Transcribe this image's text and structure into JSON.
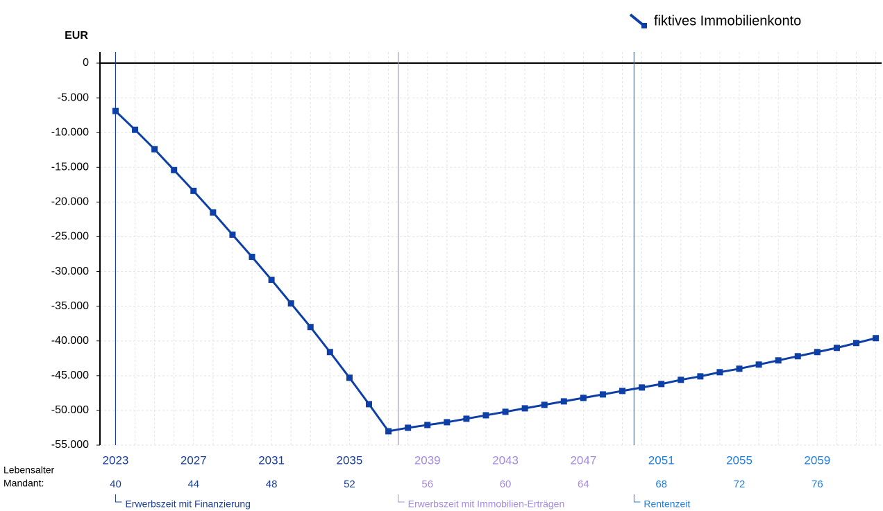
{
  "chart_data": {
    "type": "line",
    "y_axis_label": "EUR",
    "row_label": [
      "Lebensalter",
      "Mandant:"
    ],
    "x": [
      2023,
      2024,
      2025,
      2026,
      2027,
      2028,
      2029,
      2030,
      2031,
      2032,
      2033,
      2034,
      2035,
      2036,
      2037,
      2038,
      2039,
      2040,
      2041,
      2042,
      2043,
      2044,
      2045,
      2046,
      2047,
      2048,
      2049,
      2050,
      2051,
      2052,
      2053,
      2054,
      2055,
      2056,
      2057,
      2058,
      2059,
      2060,
      2061,
      2062
    ],
    "series": [
      {
        "name": "fiktives Immobilienkonto",
        "color": "#0d3fa6",
        "values": [
          -6900,
          -9600,
          -12400,
          -15400,
          -18400,
          -21500,
          -24700,
          -27900,
          -31200,
          -34600,
          -38000,
          -41600,
          -45300,
          -49100,
          -53000,
          -52500,
          -52100,
          -51700,
          -51200,
          -50700,
          -50200,
          -49700,
          -49200,
          -48700,
          -48200,
          -47700,
          -47200,
          -46700,
          -46200,
          -45600,
          -45100,
          -44500,
          -44000,
          -43400,
          -42800,
          -42200,
          -41600,
          -41000,
          -40300,
          -39600
        ]
      }
    ],
    "xlim": [
      2022.2,
      2062.3
    ],
    "xticks": [
      2023,
      2027,
      2031,
      2035,
      2039,
      2043,
      2047,
      2051,
      2055,
      2059
    ],
    "ages": [
      40,
      44,
      48,
      52,
      56,
      60,
      64,
      68,
      72,
      76
    ],
    "ylim": [
      -55000,
      1600
    ],
    "yticks": [
      0,
      {
        "value": -5000,
        "label": "-5.000"
      },
      {
        "value": -10000,
        "label": "-10.000"
      },
      {
        "value": -15000,
        "label": "-15.000"
      },
      {
        "value": -20000,
        "label": "-20.000"
      },
      {
        "value": -25000,
        "label": "-25.000"
      },
      {
        "value": -30000,
        "label": "-30.000"
      },
      {
        "value": -35000,
        "label": "-35.000"
      },
      {
        "value": -40000,
        "label": "-40.000"
      },
      {
        "value": -45000,
        "label": "-45.000"
      },
      {
        "value": -50000,
        "label": "-50.000"
      },
      {
        "value": -55000,
        "label": "-55.000"
      }
    ],
    "phases": [
      {
        "label": "Erwerbszeit mit Finanzierung",
        "color": "#1a3f9a",
        "start": 2023
      },
      {
        "label": "Erwerbszeit mit Immobilien-Erträgen",
        "color": "#a58be0",
        "start": 2037.5
      },
      {
        "label": "Rentenzeit",
        "color": "#1e7fe0",
        "start": 2049.6
      }
    ],
    "grid": true,
    "legend": "top-right"
  }
}
